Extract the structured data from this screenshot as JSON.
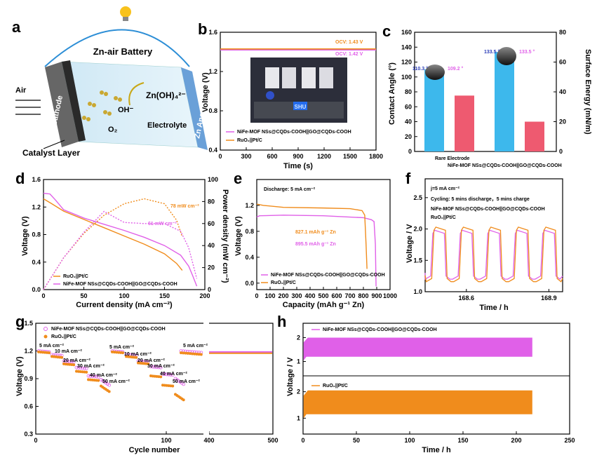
{
  "panels": {
    "a": "a",
    "b": "b",
    "c": "c",
    "d": "d",
    "e": "e",
    "f": "f",
    "g": "g",
    "h": "h"
  },
  "schematic": {
    "title": "Zn-air Battery",
    "air": "Air",
    "cathode": "Cathode",
    "anode": "Zn Anode",
    "o2": "O₂",
    "oh": "OH⁻",
    "zincate": "Zn(OH)₄²⁻",
    "electrolyte": "Electrolyte",
    "catalyst_layer": "Catalyst Layer"
  },
  "photo": {
    "label": "SHU"
  },
  "colors": {
    "magenta": "#e060e8",
    "orange": "#f08c1c",
    "blue": "#3db8ec",
    "red": "#ee5a70",
    "blueText": "#2b3db8"
  },
  "chart_data": [
    {
      "id": "b",
      "type": "line",
      "xlabel": "Time (s)",
      "ylabel": "Voltage (V)",
      "xlim": [
        0,
        1800
      ],
      "ylim": [
        0.4,
        1.6
      ],
      "xticks": [
        0,
        300,
        600,
        900,
        1200,
        1500,
        1800
      ],
      "yticks": [
        0.4,
        0.8,
        1.2,
        1.6
      ],
      "annotations": [
        "OCV: 1.43 V",
        "OCV: 1.42 V"
      ],
      "series": [
        {
          "name": "NiFe-MOF NSs@CQDs-COOH||GO@CQDs-COOH",
          "color": "#e060e8",
          "x": [
            0,
            1800
          ],
          "y": [
            1.42,
            1.42
          ]
        },
        {
          "name": "RuO₂||Pt/C",
          "color": "#f08c1c",
          "x": [
            0,
            1800
          ],
          "y": [
            1.43,
            1.43
          ]
        }
      ]
    },
    {
      "id": "c",
      "type": "bar",
      "categories": [
        "Rare Electrode",
        "NiFe-MOF NSs@CQDs-COOH||GO@CQDs-COOH"
      ],
      "ylabel": "Contact Angle (°)",
      "ylabel2": "Surface Energy (mN/m)",
      "ylim": [
        0,
        160
      ],
      "ylim2": [
        0,
        80
      ],
      "yticks": [
        0,
        20,
        40,
        60,
        80,
        100,
        120,
        140,
        160
      ],
      "yticks2": [
        0,
        20,
        40,
        60,
        80
      ],
      "series": [
        {
          "name": "Contact Angle",
          "axis": "left",
          "color": "#3db8ec",
          "values": [
            110.3,
            133.5
          ]
        },
        {
          "name": "Surface Energy",
          "axis": "right",
          "color": "#ee5a70",
          "values": [
            37.5,
            20
          ]
        }
      ],
      "angle_labels": [
        "110.3 °",
        "109.2 °",
        "133.5 °",
        "133.5 °"
      ]
    },
    {
      "id": "d",
      "type": "line",
      "xlabel": "Current density (mA cm⁻²)",
      "ylabel": "Voltage (V)",
      "ylabel2": "Power density (mW cm⁻²)",
      "xlim": [
        0,
        200
      ],
      "ylim": [
        0.0,
        1.6
      ],
      "ylim2": [
        0,
        100
      ],
      "xticks": [
        0,
        50,
        100,
        150,
        200
      ],
      "yticks": [
        0.0,
        0.4,
        0.8,
        1.2,
        1.6
      ],
      "yticks2": [
        0,
        20,
        40,
        60,
        80,
        100
      ],
      "annotations": [
        "78 mW cm⁻²",
        "61 mW cm⁻²"
      ],
      "series": [
        {
          "name": "RuO₂||Pt/C",
          "color": "#f08c1c",
          "x": [
            0,
            10,
            25,
            50,
            75,
            100,
            125,
            150,
            165,
            172
          ],
          "y": [
            1.32,
            1.25,
            1.14,
            1.02,
            0.9,
            0.78,
            0.66,
            0.52,
            0.38,
            0.28
          ]
        },
        {
          "name": "NiFe-MOF NSs@CQDs-COOH||GO@CQDs-COOH",
          "color": "#e060e8",
          "x": [
            0,
            8,
            15,
            25,
            50,
            75,
            100,
            125,
            150,
            170,
            180,
            185,
            190
          ],
          "y": [
            1.4,
            1.39,
            1.3,
            1.16,
            1.04,
            0.95,
            0.86,
            0.76,
            0.64,
            0.5,
            0.34,
            0.2,
            0.05
          ]
        },
        {
          "name": "RuO₂||Pt/C power",
          "color": "#f08c1c",
          "dashed": true,
          "axis": "right",
          "x": [
            0,
            25,
            50,
            75,
            100,
            125,
            150,
            165,
            172
          ],
          "y": [
            0,
            29,
            51,
            67.5,
            78,
            82.5,
            78,
            63,
            48
          ]
        },
        {
          "name": "NiFe-MOF power",
          "color": "#e060e8",
          "dashed": true,
          "axis": "right",
          "x": [
            0,
            25,
            50,
            75,
            100,
            125,
            150,
            170,
            180,
            190
          ],
          "y": [
            0,
            29,
            52,
            71,
            61,
            60,
            60,
            53,
            38,
            10
          ]
        }
      ]
    },
    {
      "id": "e",
      "type": "line",
      "title": "Discharge: 5 mA cm⁻²",
      "xlabel": "Capacity (mAh g⁻¹ Zn)",
      "ylabel": "Voltage (V)",
      "xlim": [
        0,
        1000
      ],
      "ylim": [
        -0.1,
        1.6
      ],
      "xticks": [
        0,
        100,
        200,
        300,
        400,
        500,
        600,
        700,
        800,
        900,
        1000
      ],
      "yticks": [
        0.0,
        0.4,
        0.8,
        1.2
      ],
      "annotations": [
        "827.1 mAh g⁻¹ Zn",
        "895.5 mAh g⁻¹ Zn"
      ],
      "series": [
        {
          "name": "NiFe-MOF NSs@CQDs-COOH||GO@CQDs-COOH",
          "color": "#e060e8",
          "x": [
            0,
            20,
            200,
            500,
            800,
            860,
            880,
            890,
            895
          ],
          "y": [
            1.02,
            1.04,
            1.05,
            1.04,
            1.01,
            0.98,
            0.95,
            0.6,
            -0.05
          ]
        },
        {
          "name": "RuO₂||Pt/C",
          "color": "#f08c1c",
          "x": [
            0,
            50,
            200,
            500,
            700,
            790,
            810,
            820,
            827
          ],
          "y": [
            1.22,
            1.2,
            1.17,
            1.16,
            1.15,
            1.12,
            1.05,
            0.6,
            0.22
          ]
        }
      ]
    },
    {
      "id": "f",
      "type": "line",
      "title": "j=5 mA cm⁻²",
      "subtitle": "Cycling: 5 mins discharge，5 mins charge",
      "xlabel": "Time / h",
      "ylabel": "Voltage / V",
      "xlim": [
        168.45,
        168.95
      ],
      "ylim": [
        1.0,
        2.8
      ],
      "xticks": [
        168.6,
        168.9
      ],
      "yticks": [
        1.0,
        1.5,
        2.0,
        2.5
      ],
      "series": [
        {
          "name": "NiFe-MOF NSs@CQDs-COOH||GO@CQDs-COOH",
          "color": "#e060e8",
          "pattern": "square wave 1.20-1.98 V"
        },
        {
          "name": "RuO₂||Pt/C",
          "color": "#f08c1c",
          "pattern": "square wave 1.18-2.02 V"
        }
      ]
    },
    {
      "id": "g",
      "type": "scatter",
      "xlabel": "Cycle number",
      "ylabel": "Voltage (V)",
      "xlim": [
        0,
        500
      ],
      "ylim": [
        0.3,
        1.5
      ],
      "xticks": [
        0,
        100,
        400,
        500
      ],
      "yticks": [
        0.3,
        0.6,
        0.9,
        1.2,
        1.5
      ],
      "rate_labels": [
        "5 mA cm⁻²",
        "10 mA cm⁻²",
        "20 mA cm⁻²",
        "30 mA cm⁻²",
        "40 mA cm⁻²",
        "50 mA cm⁻²"
      ],
      "series": [
        {
          "name": "NiFe-MOF NSs@CQDs-COOH||GO@CQDs-COOH",
          "color": "#e060e8",
          "marker": "open circle",
          "segments": [
            1.2,
            1.16,
            1.09,
            1.02,
            0.93,
            0.86,
            1.2,
            1.16,
            1.09,
            1.03,
            0.95,
            0.87,
            1.2
          ]
        },
        {
          "name": "RuO₂||Pt/C",
          "color": "#f08c1c",
          "marker": "filled circle",
          "segments": [
            1.19,
            1.14,
            1.06,
            0.98,
            0.89,
            0.79,
            1.19,
            1.14,
            1.07,
            0.93,
            0.83,
            0.7,
            1.18
          ]
        }
      ]
    },
    {
      "id": "h",
      "type": "area",
      "xlabel": "Time / h",
      "ylabel": "Voltage / V",
      "xlim": [
        0,
        250
      ],
      "xticks": [
        0,
        50,
        100,
        150,
        200,
        250
      ],
      "yticks": [
        1,
        2
      ],
      "series": [
        {
          "name": "NiFe-MOF NSs@CQDs-COOH||GO@CQDs-COOH",
          "color": "#e060e8",
          "range": [
            1.2,
            2.0
          ],
          "x_end": 215
        },
        {
          "name": "RuO₂||Pt/C",
          "color": "#f08c1c",
          "range": [
            1.15,
            2.05
          ],
          "x_end": 215
        }
      ]
    }
  ]
}
